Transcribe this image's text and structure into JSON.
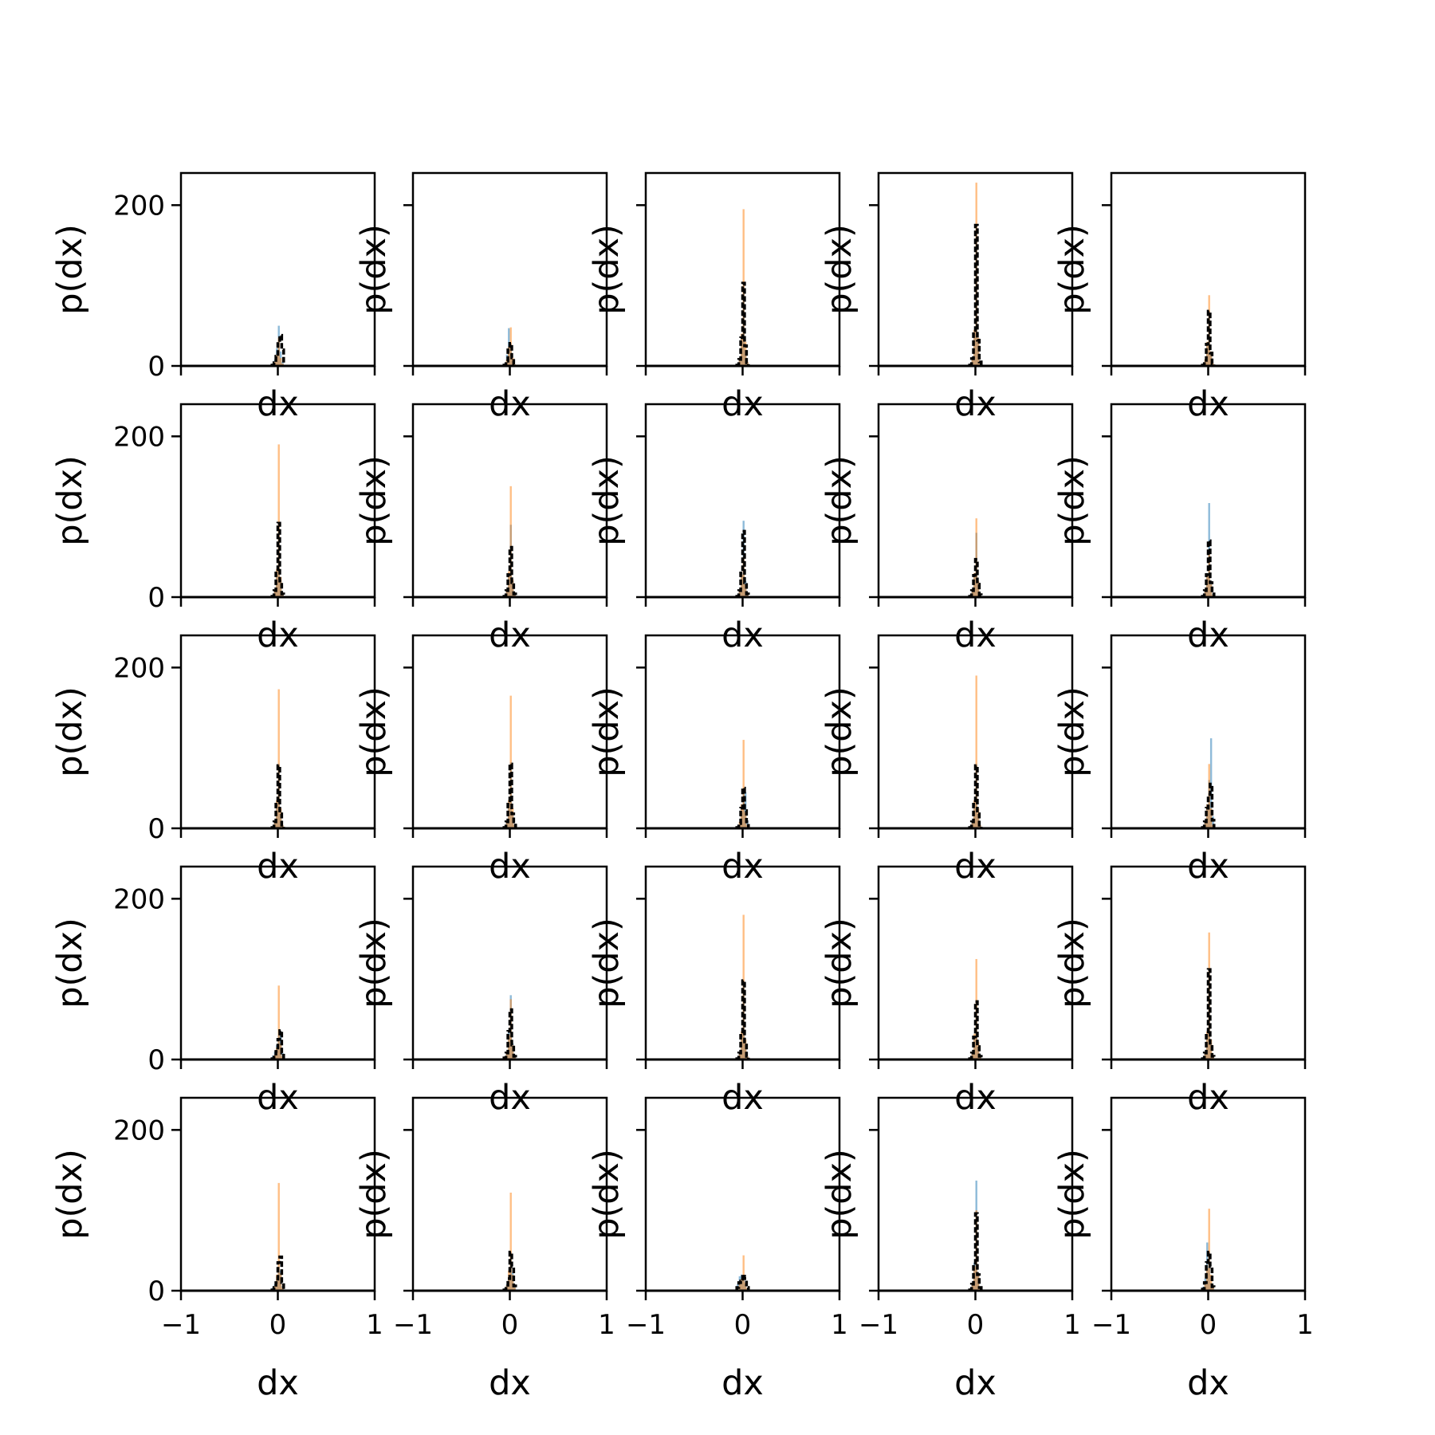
{
  "chart_data": {
    "type": "histogram-grid",
    "layout": "5x5",
    "xlabel": "dx",
    "ylabel": "p(dx)",
    "xlim": [
      -1,
      1
    ],
    "ylim": [
      0,
      240
    ],
    "x_ticks": [
      -1,
      0,
      1
    ],
    "x_tick_labels": [
      "−1",
      "0",
      "1"
    ],
    "y_ticks": [
      0,
      200
    ],
    "y_tick_labels": [
      "0",
      "200"
    ],
    "grid": false,
    "legend": "none",
    "colors": {
      "series_blue": "#1f77b4",
      "series_orange": "#ff7f0e",
      "series_black": "#000000",
      "axes": "#000000"
    },
    "panels": [
      {
        "row": 0,
        "col": 0,
        "blue": [
          2,
          8,
          22,
          50,
          18,
          5
        ],
        "orange": [
          1,
          5,
          14,
          35,
          10,
          3
        ],
        "black": [
          1,
          4,
          12,
          30,
          38,
          20
        ]
      },
      {
        "row": 0,
        "col": 1,
        "blue": [
          3,
          14,
          47,
          20,
          6,
          2
        ],
        "orange": [
          2,
          8,
          24,
          48,
          10,
          2
        ],
        "black": [
          1,
          6,
          20,
          28,
          10,
          2
        ]
      },
      {
        "row": 0,
        "col": 2,
        "blue": [
          1,
          6,
          30,
          90,
          20,
          4
        ],
        "orange": [
          1,
          10,
          40,
          195,
          30,
          5
        ],
        "black": [
          1,
          8,
          35,
          103,
          25,
          4
        ]
      },
      {
        "row": 0,
        "col": 3,
        "blue": [
          1,
          8,
          40,
          160,
          30,
          5
        ],
        "orange": [
          1,
          10,
          45,
          228,
          35,
          6
        ],
        "black": [
          1,
          9,
          42,
          175,
          32,
          5
        ]
      },
      {
        "row": 0,
        "col": 4,
        "blue": [
          1,
          6,
          25,
          62,
          15,
          3
        ],
        "orange": [
          1,
          8,
          30,
          88,
          18,
          3
        ],
        "black": [
          1,
          7,
          27,
          68,
          16,
          3
        ]
      },
      {
        "row": 1,
        "col": 0,
        "blue": [
          1,
          6,
          28,
          80,
          18,
          4
        ],
        "orange": [
          1,
          9,
          35,
          190,
          25,
          4
        ],
        "black": [
          1,
          8,
          30,
          92,
          20,
          4
        ]
      },
      {
        "row": 1,
        "col": 1,
        "blue": [
          1,
          7,
          30,
          90,
          20,
          4
        ],
        "orange": [
          1,
          9,
          32,
          138,
          22,
          4
        ],
        "black": [
          1,
          8,
          28,
          62,
          18,
          4
        ]
      },
      {
        "row": 1,
        "col": 2,
        "blue": [
          1,
          7,
          30,
          95,
          20,
          4
        ],
        "orange": [
          1,
          8,
          28,
          50,
          16,
          3
        ],
        "black": [
          1,
          8,
          30,
          82,
          18,
          4
        ]
      },
      {
        "row": 1,
        "col": 3,
        "blue": [
          1,
          7,
          28,
          80,
          18,
          4
        ],
        "orange": [
          1,
          9,
          30,
          98,
          20,
          4
        ],
        "black": [
          1,
          8,
          27,
          47,
          16,
          3
        ]
      },
      {
        "row": 1,
        "col": 4,
        "blue": [
          1,
          7,
          30,
          117,
          20,
          4
        ],
        "orange": [
          1,
          8,
          27,
          55,
          16,
          3
        ],
        "black": [
          1,
          8,
          28,
          70,
          18,
          4
        ]
      },
      {
        "row": 2,
        "col": 0,
        "blue": [
          1,
          7,
          30,
          80,
          18,
          4
        ],
        "orange": [
          1,
          9,
          35,
          173,
          25,
          4
        ],
        "black": [
          1,
          8,
          30,
          78,
          18,
          4
        ]
      },
      {
        "row": 2,
        "col": 1,
        "blue": [
          1,
          7,
          30,
          82,
          18,
          4
        ],
        "orange": [
          1,
          9,
          35,
          165,
          25,
          4
        ],
        "black": [
          1,
          8,
          30,
          80,
          18,
          4
        ]
      },
      {
        "row": 2,
        "col": 2,
        "blue": [
          1,
          5,
          20,
          48,
          45,
          10
        ],
        "orange": [
          1,
          8,
          30,
          110,
          20,
          4
        ],
        "black": [
          1,
          6,
          25,
          50,
          22,
          8
        ]
      },
      {
        "row": 2,
        "col": 3,
        "blue": [
          1,
          7,
          30,
          80,
          18,
          4
        ],
        "orange": [
          1,
          9,
          35,
          190,
          25,
          4
        ],
        "black": [
          1,
          8,
          30,
          78,
          18,
          4
        ]
      },
      {
        "row": 2,
        "col": 4,
        "blue": [
          1,
          8,
          30,
          60,
          112,
          15
        ],
        "orange": [
          1,
          8,
          30,
          80,
          25,
          4
        ],
        "black": [
          1,
          8,
          25,
          42,
          55,
          10
        ]
      },
      {
        "row": 3,
        "col": 0,
        "blue": [
          5,
          10,
          18,
          30,
          35,
          8
        ],
        "orange": [
          2,
          6,
          15,
          92,
          20,
          4
        ],
        "black": [
          1,
          5,
          10,
          25,
          36,
          8
        ]
      },
      {
        "row": 3,
        "col": 1,
        "blue": [
          2,
          8,
          35,
          80,
          20,
          4
        ],
        "orange": [
          1,
          8,
          30,
          75,
          18,
          4
        ],
        "black": [
          2,
          8,
          35,
          62,
          18,
          4
        ]
      },
      {
        "row": 3,
        "col": 2,
        "blue": [
          1,
          7,
          30,
          95,
          20,
          4
        ],
        "orange": [
          1,
          9,
          35,
          180,
          25,
          4
        ],
        "black": [
          1,
          8,
          30,
          98,
          18,
          4
        ]
      },
      {
        "row": 3,
        "col": 3,
        "blue": [
          1,
          7,
          28,
          65,
          16,
          4
        ],
        "orange": [
          1,
          9,
          32,
          125,
          22,
          4
        ],
        "black": [
          1,
          8,
          28,
          72,
          16,
          4
        ]
      },
      {
        "row": 3,
        "col": 4,
        "blue": [
          1,
          7,
          30,
          108,
          20,
          4
        ],
        "orange": [
          1,
          9,
          35,
          158,
          25,
          4
        ],
        "black": [
          1,
          8,
          30,
          112,
          18,
          4
        ]
      },
      {
        "row": 4,
        "col": 0,
        "blue": [
          4,
          8,
          18,
          30,
          25,
          6
        ],
        "orange": [
          1,
          6,
          20,
          134,
          22,
          4
        ],
        "black": [
          1,
          4,
          10,
          35,
          42,
          10
        ]
      },
      {
        "row": 4,
        "col": 1,
        "blue": [
          3,
          8,
          20,
          40,
          22,
          5
        ],
        "orange": [
          1,
          7,
          25,
          122,
          20,
          4
        ],
        "black": [
          1,
          5,
          15,
          48,
          30,
          6
        ]
      },
      {
        "row": 4,
        "col": 2,
        "blue": [
          8,
          18,
          20,
          15,
          8,
          3
        ],
        "orange": [
          2,
          8,
          15,
          44,
          10,
          3
        ],
        "black": [
          4,
          10,
          12,
          20,
          15,
          4
        ]
      },
      {
        "row": 4,
        "col": 3,
        "blue": [
          1,
          8,
          35,
          137,
          22,
          4
        ],
        "orange": [
          1,
          9,
          30,
          100,
          20,
          4
        ],
        "black": [
          1,
          8,
          32,
          96,
          20,
          4
        ]
      },
      {
        "row": 4,
        "col": 4,
        "blue": [
          5,
          15,
          60,
          30,
          10,
          3
        ],
        "orange": [
          1,
          8,
          28,
          102,
          20,
          4
        ],
        "black": [
          2,
          10,
          35,
          48,
          30,
          5
        ]
      }
    ]
  }
}
